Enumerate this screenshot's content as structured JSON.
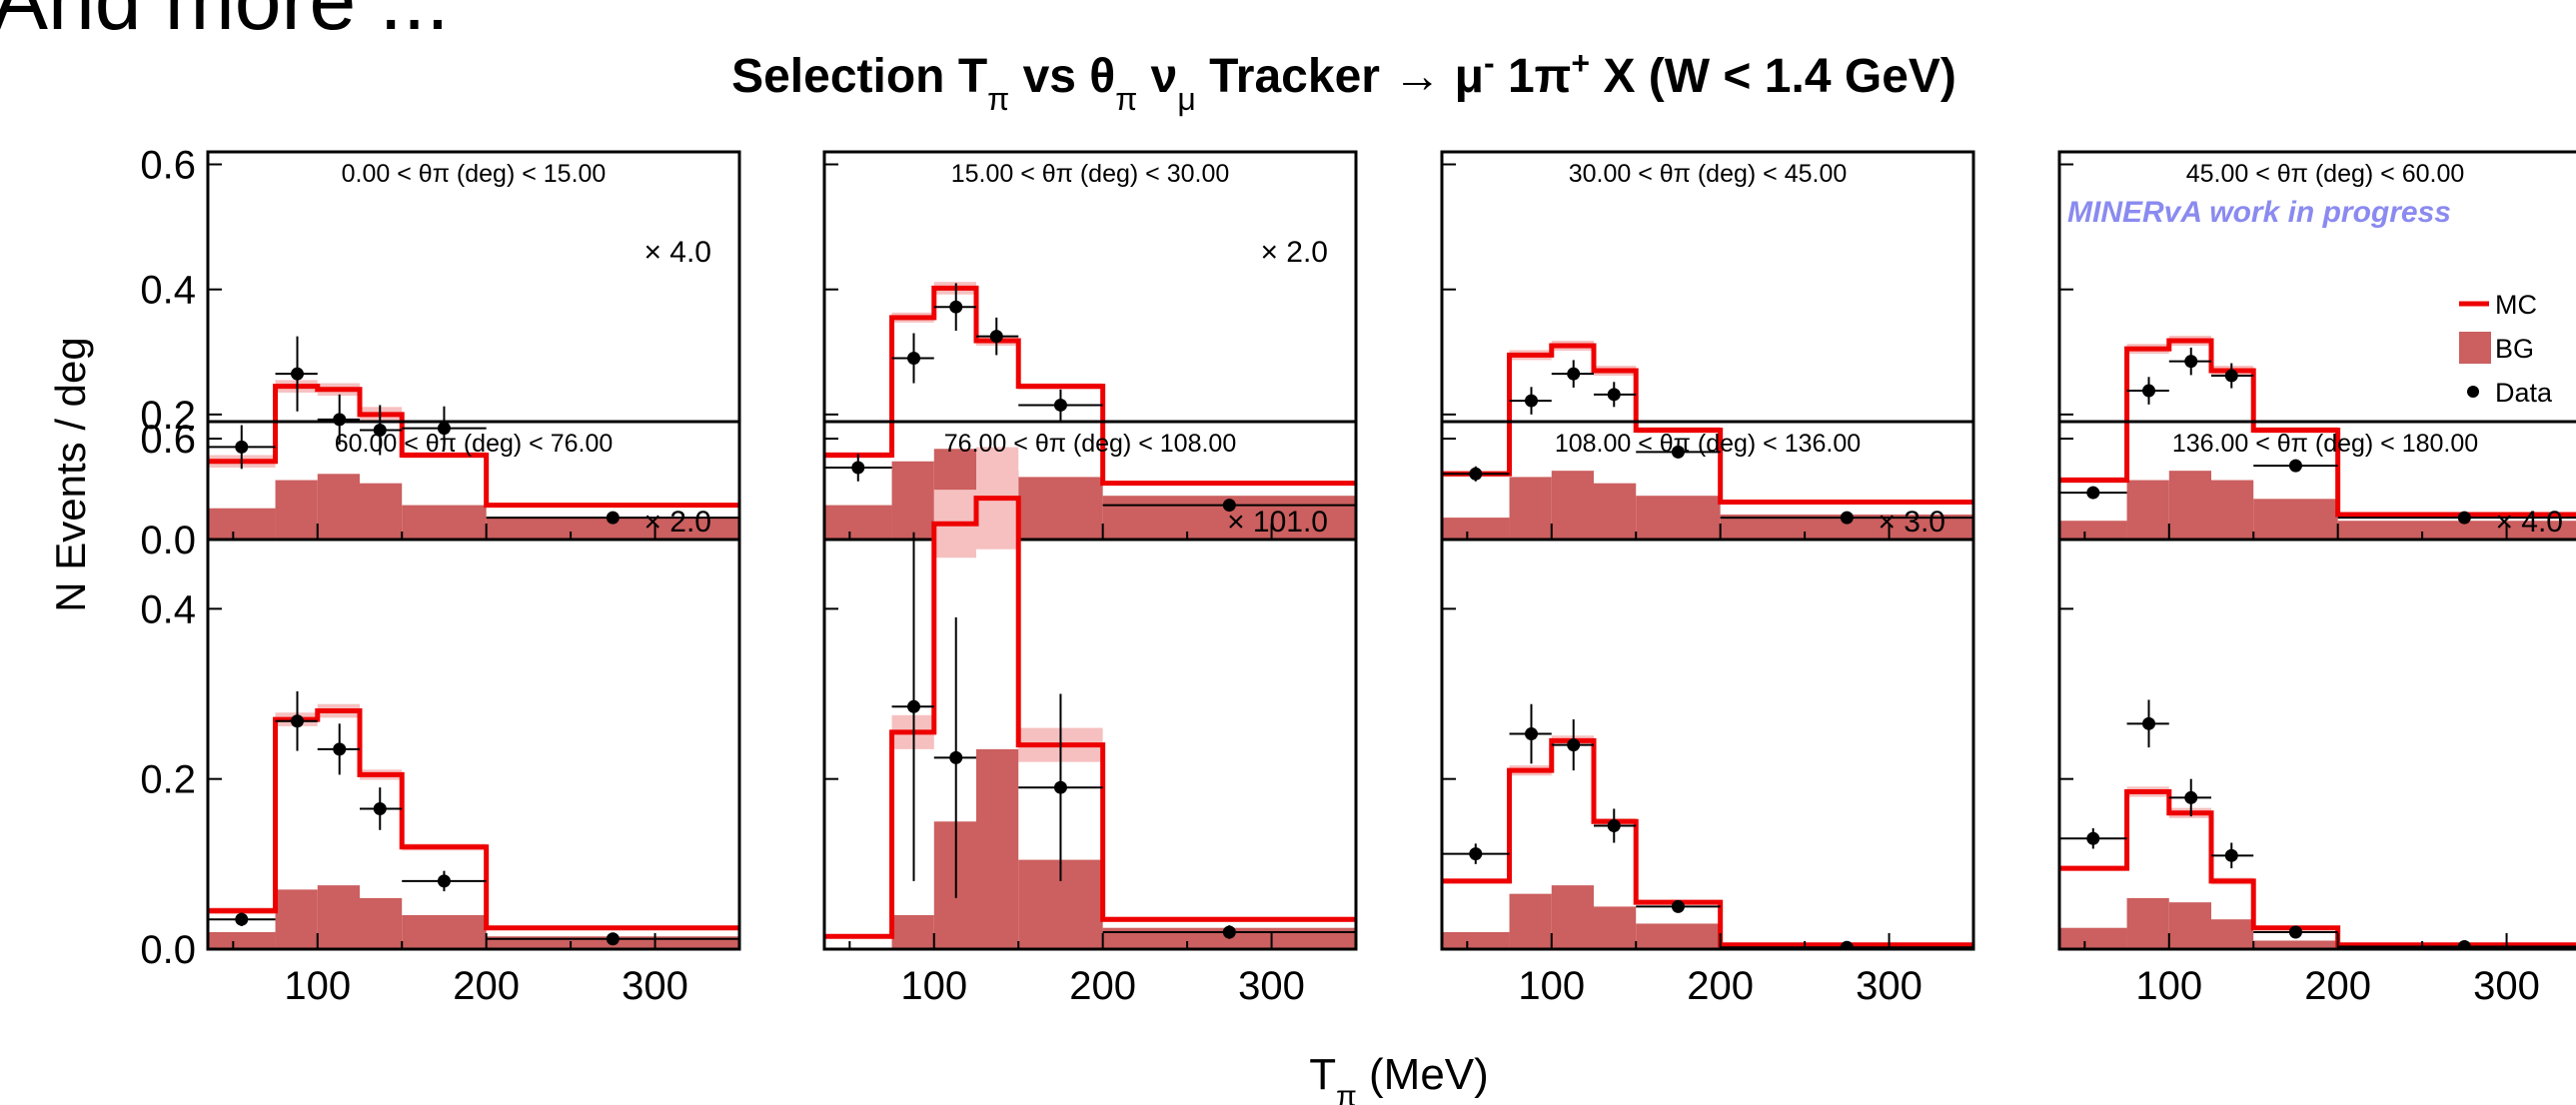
{
  "slide": {
    "heading": "And more ..."
  },
  "figure": {
    "title_parts": {
      "a": "Selection T",
      "a_sub": "π",
      "b": " vs  θ",
      "b_sub": "π",
      "c": "  ν",
      "c_sub": "μ",
      "d": " Tracker  →  μ",
      "d_sup": "-",
      "e": " 1π",
      "e_sup": "+",
      "f": " X  (W < 1.4 GeV)"
    },
    "ylabel": "N Events / deg",
    "xlabel_main": "T",
    "xlabel_sub": "π",
    "xlabel_unit": " (MeV)",
    "watermark": "MINERvA work in progress",
    "legend": [
      "MC",
      "BG",
      "Data"
    ]
  },
  "colors": {
    "mc_line": "#ee0000",
    "bg_fill": "#cc5f5f",
    "syst_band": "#f6c0c0",
    "data": "#000000",
    "watermark": "#8a8af0"
  },
  "chart_data": {
    "type": "histogram-grid",
    "title": "Selection T_π vs θ_π ν_μ Tracker → μ^- 1π^+ X (W < 1.4 GeV)",
    "xlabel": "T_π (MeV)",
    "ylabel": "N Events / deg",
    "xlim": [
      35,
      350
    ],
    "ylim": [
      0,
      0.62
    ],
    "xticks": [
      100,
      200,
      300
    ],
    "yticks": [
      0.0,
      0.2,
      0.4,
      0.6
    ],
    "ytick_labels": [
      "0.0",
      "0.2",
      "0.4",
      "0.6"
    ],
    "bin_edges": [
      35,
      75,
      100,
      125,
      150,
      200,
      350
    ],
    "panels": [
      {
        "label": "0.00 < θπ (deg) < 15.00",
        "scale_label": "× 4.0",
        "mc": [
          0.125,
          0.245,
          0.24,
          0.2,
          0.135,
          0.055
        ],
        "bg": [
          0.05,
          0.095,
          0.105,
          0.09,
          0.055,
          0.035
        ],
        "band": [
          0.01,
          0.01,
          0.01,
          0.012,
          0.005,
          0.003
        ],
        "data_x": [
          55,
          88,
          113,
          137,
          175,
          275
        ],
        "data_y": [
          0.148,
          0.265,
          0.192,
          0.175,
          0.178,
          0.035
        ],
        "data_yerr": [
          0.035,
          0.06,
          0.04,
          0.04,
          0.035,
          0.005
        ]
      },
      {
        "label": "15.00 < θπ (deg) < 30.00",
        "scale_label": "× 2.0",
        "mc": [
          0.135,
          0.355,
          0.402,
          0.318,
          0.245,
          0.09
        ],
        "bg": [
          0.055,
          0.125,
          0.145,
          0.11,
          0.1,
          0.07
        ],
        "band": [
          0.005,
          0.008,
          0.01,
          0.008,
          0.005,
          0.003
        ],
        "data_x": [
          55,
          88,
          113,
          137,
          175,
          275
        ],
        "data_y": [
          0.115,
          0.29,
          0.372,
          0.325,
          0.215,
          0.055
        ],
        "data_yerr": [
          0.022,
          0.04,
          0.038,
          0.03,
          0.025,
          0.005
        ]
      },
      {
        "label": "30.00 < θπ (deg) < 45.00",
        "scale_label": "",
        "mc": [
          0.105,
          0.295,
          0.31,
          0.27,
          0.175,
          0.06
        ],
        "bg": [
          0.035,
          0.1,
          0.11,
          0.09,
          0.07,
          0.04
        ],
        "band": [
          0.005,
          0.008,
          0.008,
          0.008,
          0.005,
          0.003
        ],
        "data_x": [
          55,
          88,
          113,
          137,
          175,
          275
        ],
        "data_y": [
          0.105,
          0.222,
          0.265,
          0.232,
          0.14,
          0.035
        ],
        "data_yerr": [
          0.012,
          0.022,
          0.022,
          0.02,
          0.01,
          0.004
        ]
      },
      {
        "label": "45.00 < θπ (deg) < 60.00",
        "scale_label": "",
        "mc": [
          0.095,
          0.305,
          0.318,
          0.27,
          0.175,
          0.04
        ],
        "bg": [
          0.03,
          0.095,
          0.11,
          0.095,
          0.065,
          0.03
        ],
        "band": [
          0.005,
          0.008,
          0.008,
          0.008,
          0.005,
          0.003
        ],
        "data_x": [
          55,
          88,
          113,
          137,
          175,
          275
        ],
        "data_y": [
          0.075,
          0.238,
          0.285,
          0.262,
          0.118,
          0.035
        ],
        "data_yerr": [
          0.01,
          0.022,
          0.022,
          0.02,
          0.01,
          0.004
        ]
      },
      {
        "label": "60.00 < θπ (deg) < 76.00",
        "scale_label": "× 2.0",
        "mc": [
          0.045,
          0.27,
          0.28,
          0.205,
          0.12,
          0.025
        ],
        "bg": [
          0.02,
          0.07,
          0.075,
          0.06,
          0.04,
          0.015
        ],
        "band": [
          0.004,
          0.008,
          0.008,
          0.006,
          0.004,
          0.002
        ],
        "data_x": [
          55,
          88,
          113,
          137,
          175,
          275
        ],
        "data_y": [
          0.035,
          0.268,
          0.235,
          0.165,
          0.08,
          0.012
        ],
        "data_yerr": [
          0.008,
          0.035,
          0.03,
          0.025,
          0.012,
          0.003
        ]
      },
      {
        "label": "76.00 < θπ (deg) < 108.00",
        "scale_label": "× 101.0",
        "mc": [
          0.015,
          0.255,
          0.5,
          0.53,
          0.24,
          0.035
        ],
        "bg": [
          0.0,
          0.04,
          0.15,
          0.235,
          0.105,
          0.025
        ],
        "band": [
          0.0,
          0.02,
          0.04,
          0.06,
          0.02,
          0.003
        ],
        "data_x": [
          88,
          113,
          175,
          275
        ],
        "data_y": [
          0.285,
          0.225,
          0.19,
          0.02
        ],
        "data_yerr": [
          0.205,
          0.165,
          0.11,
          0.008
        ]
      },
      {
        "label": "108.00 < θπ (deg) < 136.00",
        "scale_label": "× 3.0",
        "mc": [
          0.08,
          0.21,
          0.245,
          0.15,
          0.055,
          0.005
        ],
        "bg": [
          0.02,
          0.065,
          0.075,
          0.05,
          0.03,
          0.003
        ],
        "band": [
          0.003,
          0.006,
          0.006,
          0.004,
          0.003,
          0.001
        ],
        "data_x": [
          55,
          88,
          113,
          137,
          175,
          275
        ],
        "data_y": [
          0.112,
          0.253,
          0.24,
          0.145,
          0.05,
          0.002
        ],
        "data_yerr": [
          0.012,
          0.035,
          0.03,
          0.02,
          0.005,
          0.001
        ]
      },
      {
        "label": "136.00 < θπ (deg) < 180.00",
        "scale_label": "× 4.0",
        "mc": [
          0.095,
          0.185,
          0.16,
          0.08,
          0.025,
          0.005
        ],
        "bg": [
          0.025,
          0.06,
          0.055,
          0.035,
          0.01,
          0.002
        ],
        "band": [
          0.003,
          0.006,
          0.006,
          0.004,
          0.002,
          0.001
        ],
        "data_x": [
          55,
          88,
          113,
          137,
          175,
          275
        ],
        "data_y": [
          0.13,
          0.265,
          0.178,
          0.11,
          0.02,
          0.003
        ],
        "data_yerr": [
          0.012,
          0.028,
          0.022,
          0.015,
          0.004,
          0.001
        ]
      }
    ]
  }
}
